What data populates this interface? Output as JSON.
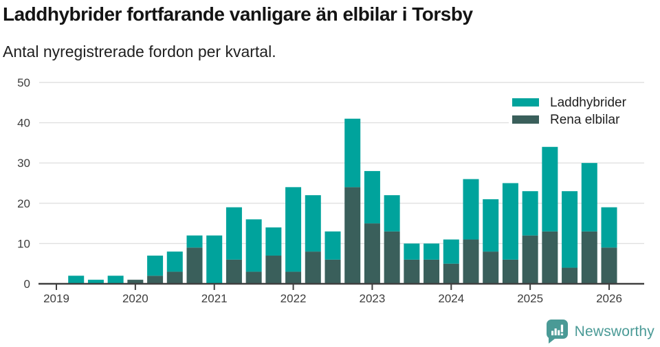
{
  "header": {
    "title": "Laddhybrider fortfarande vanligare än elbilar i Torsby",
    "subtitle": "Antal nyregistrerade fordon per kvartal."
  },
  "chart_data": {
    "type": "bar",
    "stacked": true,
    "title": "Laddhybrider fortfarande vanligare än elbilar i Torsby",
    "subtitle": "Antal nyregistrerade fordon per kvartal.",
    "x": [
      "2019 Q1",
      "2019 Q2",
      "2019 Q3",
      "2019 Q4",
      "2020 Q1",
      "2020 Q2",
      "2020 Q3",
      "2020 Q4",
      "2021 Q1",
      "2021 Q2",
      "2021 Q3",
      "2021 Q4",
      "2022 Q1",
      "2022 Q2",
      "2022 Q3",
      "2022 Q4",
      "2023 Q1",
      "2023 Q2",
      "2023 Q3",
      "2023 Q4",
      "2024 Q1",
      "2024 Q2",
      "2024 Q3",
      "2024 Q4",
      "2025 Q1",
      "2025 Q2",
      "2025 Q3",
      "2025 Q4",
      "2026 Q1"
    ],
    "series": [
      {
        "name": "Rena elbilar",
        "color": "#3a5f5b",
        "values": [
          0,
          0,
          0,
          0,
          1,
          2,
          3,
          9,
          0,
          6,
          3,
          7,
          3,
          8,
          6,
          24,
          15,
          13,
          6,
          6,
          5,
          11,
          8,
          6,
          12,
          13,
          4,
          13,
          9
        ]
      },
      {
        "name": "Laddhybrider",
        "color": "#00a39c",
        "values": [
          0,
          2,
          1,
          2,
          0,
          5,
          5,
          3,
          12,
          13,
          13,
          7,
          21,
          14,
          7,
          17,
          13,
          9,
          4,
          4,
          6,
          15,
          13,
          19,
          11,
          21,
          19,
          17,
          10
        ]
      }
    ],
    "totals": [
      0,
      2,
      1,
      2,
      1,
      7,
      8,
      12,
      12,
      19,
      16,
      14,
      24,
      22,
      13,
      41,
      28,
      22,
      10,
      10,
      11,
      26,
      21,
      25,
      23,
      34,
      23,
      30,
      19
    ],
    "xticks": [
      "2019",
      "2020",
      "2021",
      "2022",
      "2023",
      "2024",
      "2025",
      "2026"
    ],
    "yticks": [
      0,
      10,
      20,
      30,
      40,
      50
    ],
    "ylim": [
      0,
      50
    ],
    "grid": "horizontal",
    "legend": [
      {
        "label": "Laddhybrider",
        "color": "#00a39c"
      },
      {
        "label": "Rena elbilar",
        "color": "#3a5f5b"
      }
    ],
    "legend_position": "top-right"
  },
  "footer": {
    "brand": "Newsworthy",
    "logo_icon": "bar-chart-speech-bubble-icon"
  },
  "colors": {
    "laddhybrider": "#00a39c",
    "rena_elbilar": "#3a5f5b",
    "grid": "#e0e0e0",
    "axis": "#3f3f3f",
    "tick_label": "#3d3d3d",
    "title": "#141414",
    "text": "#1f1f1f",
    "brand": "#4a9a96",
    "background": "#ffffff"
  }
}
